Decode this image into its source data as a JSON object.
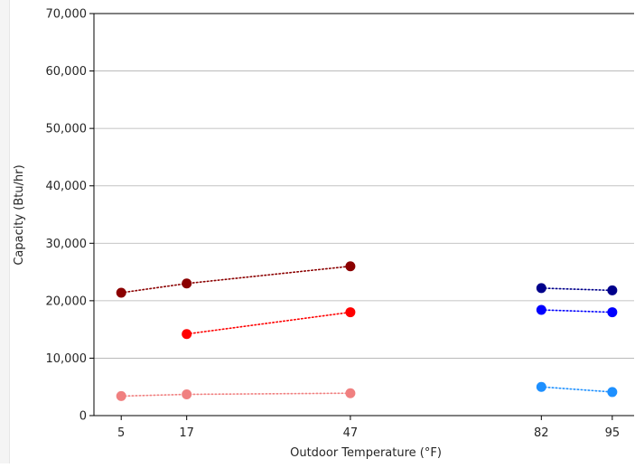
{
  "chart_data": {
    "type": "line",
    "xlabel": "Outdoor Temperature (°F)",
    "ylabel": "Capacity (Btu/hr)",
    "xticks": [
      5,
      17,
      47,
      82,
      95
    ],
    "xlim": [
      0,
      99
    ],
    "yticks": [
      0,
      10000,
      20000,
      30000,
      40000,
      50000,
      60000,
      70000
    ],
    "ytick_labels": [
      "0",
      "10,000",
      "20,000",
      "30,000",
      "40,000",
      "50,000",
      "60,000",
      "70,000"
    ],
    "ylim": [
      0,
      70000
    ],
    "grid": "horizontal",
    "series": [
      {
        "x": [
          5,
          17,
          47
        ],
        "y": [
          21400,
          23000,
          26000
        ],
        "color": "#8b0000",
        "style": "dotted",
        "marker": "circle"
      },
      {
        "x": [
          17,
          47
        ],
        "y": [
          14200,
          18000
        ],
        "color": "#ff0000",
        "style": "dotted",
        "marker": "circle"
      },
      {
        "x": [
          5,
          17,
          47
        ],
        "y": [
          3400,
          3700,
          3900
        ],
        "color": "#f08080",
        "style": "dotted",
        "marker": "circle"
      },
      {
        "x": [
          82,
          95
        ],
        "y": [
          22200,
          21800
        ],
        "color": "#00008b",
        "style": "dotted",
        "marker": "circle"
      },
      {
        "x": [
          82,
          95
        ],
        "y": [
          18400,
          18000
        ],
        "color": "#0000ff",
        "style": "dotted",
        "marker": "circle"
      },
      {
        "x": [
          82,
          95
        ],
        "y": [
          5000,
          4100
        ],
        "color": "#1e90ff",
        "style": "dotted",
        "marker": "circle"
      }
    ]
  }
}
